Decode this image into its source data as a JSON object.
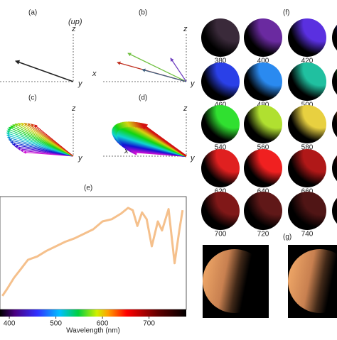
{
  "panel_labels": {
    "a": "(a)",
    "b": "(b)",
    "c": "(c)",
    "d": "(d)",
    "e": "(e)",
    "f": "(f)",
    "g": "(g)"
  },
  "panel_a": {
    "up": "(up)",
    "z": "z",
    "y": "y"
  },
  "panel_b": {
    "z": "z",
    "x": "x",
    "y": "y"
  },
  "panel_c": {
    "z": "z",
    "y": "y"
  },
  "panel_d": {
    "z": "z",
    "x": "x",
    "y": "y"
  },
  "spectrum": {
    "x_label": "Wavelength (nm)",
    "xlim": [
      380,
      780
    ],
    "ylim": [
      0,
      1
    ],
    "xticks": [
      400,
      500,
      600,
      700
    ],
    "color": "#f5c08c",
    "x": [
      385,
      395,
      410,
      425,
      440,
      460,
      480,
      500,
      520,
      540,
      560,
      580,
      600,
      620,
      640,
      655,
      665,
      675,
      685,
      695,
      706,
      719,
      728,
      742,
      755,
      765,
      772
    ],
    "values": [
      0.12,
      0.18,
      0.28,
      0.36,
      0.44,
      0.47,
      0.52,
      0.56,
      0.6,
      0.63,
      0.67,
      0.71,
      0.78,
      0.8,
      0.85,
      0.9,
      0.88,
      0.74,
      0.86,
      0.8,
      0.56,
      0.78,
      0.7,
      0.89,
      0.41,
      0.7,
      0.88
    ]
  },
  "swatches": [
    {
      "label": "380",
      "color": "#3a2a3a"
    },
    {
      "label": "400",
      "color": "#6a2aa0"
    },
    {
      "label": "420",
      "color": "#5a30e0"
    },
    {
      "label": null,
      "color": "#3040e0"
    },
    {
      "label": "460",
      "color": "#2a40e8"
    },
    {
      "label": "480",
      "color": "#2a8af0"
    },
    {
      "label": "500",
      "color": "#20c0a0"
    },
    {
      "label": null,
      "color": "#20d040"
    },
    {
      "label": "540",
      "color": "#30e030"
    },
    {
      "label": "560",
      "color": "#b0e030"
    },
    {
      "label": "580",
      "color": "#e8d040"
    },
    {
      "label": null,
      "color": "#f08020"
    },
    {
      "label": "620",
      "color": "#e02020"
    },
    {
      "label": "640",
      "color": "#f02020"
    },
    {
      "label": "660",
      "color": "#b01818"
    },
    {
      "label": null,
      "color": "#c01818"
    },
    {
      "label": "700",
      "color": "#801818"
    },
    {
      "label": "720",
      "color": "#601818"
    },
    {
      "label": "740",
      "color": "#501515"
    },
    {
      "label": null,
      "color": "#401010"
    }
  ]
}
